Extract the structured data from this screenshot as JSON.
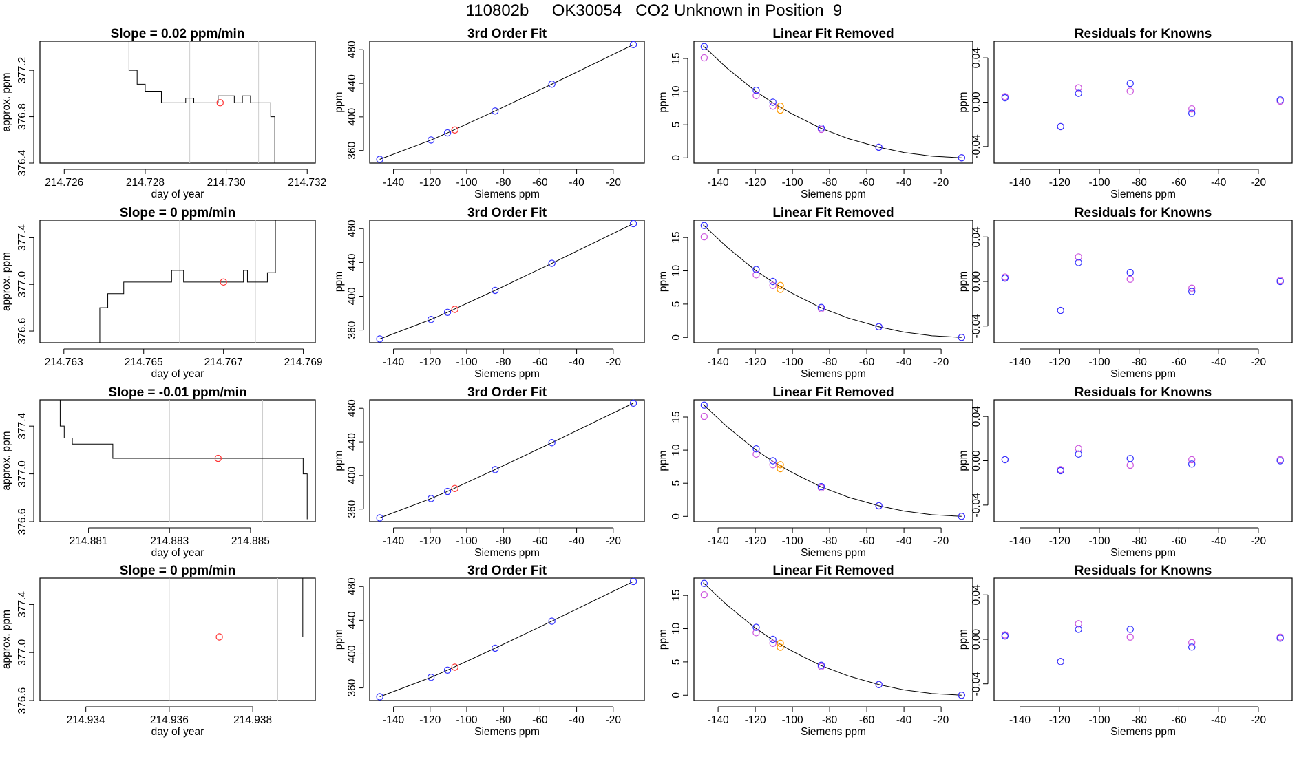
{
  "title": "110802b     OK30054   CO2 Unknown in Position  9",
  "colors": {
    "line": "#000000",
    "known_standard": "#3333ff",
    "alt_standard": "#cc55dd",
    "unknown": "#ff3333",
    "unknown_fit": "#ff9900",
    "gridline": "#cccccc"
  },
  "chart_data": [
    {
      "type": "line",
      "row": 0,
      "col": 0,
      "title": "Slope =  0.02  ppm/min",
      "xlabel": "day of year",
      "ylabel": "approx. ppm",
      "xlim": [
        214.7254,
        214.7322
      ],
      "ylim": [
        376.4,
        377.45
      ],
      "xticks": [
        214.726,
        214.728,
        214.73,
        214.732
      ],
      "xticklabels": [
        "214.726",
        "214.728",
        "214.730",
        "214.732"
      ],
      "yticks": [
        376.4,
        376.8,
        377.2
      ],
      "yticklabels": [
        "376.4",
        "376.8",
        "377.2"
      ],
      "vlines": [
        214.7291,
        214.7308
      ],
      "series": {
        "x": [
          214.7274,
          214.7276,
          214.7278,
          214.728,
          214.7282,
          214.7284,
          214.7286,
          214.7288,
          214.729,
          214.7292,
          214.7294,
          214.7296,
          214.7298,
          214.73,
          214.7302,
          214.7304,
          214.7306,
          214.7308,
          214.731,
          214.7311,
          214.7312
        ],
        "y": [
          377.45,
          377.2,
          377.08,
          377.02,
          377.02,
          376.92,
          376.92,
          376.92,
          376.96,
          376.92,
          376.92,
          376.92,
          376.98,
          376.98,
          376.92,
          376.98,
          376.92,
          376.92,
          376.92,
          376.8,
          376.4
        ]
      },
      "marker": {
        "x": 214.72985,
        "y": 376.92
      }
    },
    {
      "type": "line",
      "row": 1,
      "col": 0,
      "title": "Slope =  0  ppm/min",
      "xlabel": "day of year",
      "ylabel": "approx. ppm",
      "xlim": [
        214.7624,
        214.7693
      ],
      "ylim": [
        376.5,
        377.55
      ],
      "xticks": [
        214.763,
        214.765,
        214.767,
        214.769
      ],
      "xticklabels": [
        "214.763",
        "214.765",
        "214.767",
        "214.769"
      ],
      "yticks": [
        376.6,
        377.0,
        377.4
      ],
      "yticklabels": [
        "376.6",
        "377.0",
        "377.4"
      ],
      "vlines": [
        214.7659,
        214.7678
      ],
      "series": {
        "x": [
          214.7637,
          214.7639,
          214.7641,
          214.7643,
          214.7645,
          214.7652,
          214.7657,
          214.7659,
          214.766,
          214.7663,
          214.7666,
          214.7671,
          214.7675,
          214.7676,
          214.7678,
          214.7681,
          214.7683
        ],
        "y": [
          376.5,
          376.8,
          376.92,
          376.92,
          377.02,
          377.02,
          377.12,
          377.12,
          377.02,
          377.02,
          377.02,
          377.02,
          377.12,
          377.02,
          377.02,
          377.1,
          377.55
        ]
      },
      "marker": {
        "x": 214.767,
        "y": 377.02
      }
    },
    {
      "type": "line",
      "row": 2,
      "col": 0,
      "title": "Slope =  -0.01  ppm/min",
      "xlabel": "day of year",
      "ylabel": "approx. ppm",
      "xlim": [
        214.8798,
        214.8866
      ],
      "ylim": [
        376.6,
        377.62
      ],
      "xticks": [
        214.881,
        214.883,
        214.885
      ],
      "xticklabels": [
        "214.881",
        "214.883",
        "214.885"
      ],
      "yticks": [
        376.6,
        377.0,
        377.4
      ],
      "yticklabels": [
        "376.6",
        "377.0",
        "377.4"
      ],
      "vlines": [
        214.883,
        214.8853
      ],
      "series": {
        "x": [
          214.8801,
          214.8803,
          214.8804,
          214.8806,
          214.8808,
          214.8811,
          214.8816,
          214.8822,
          214.8828,
          214.8834,
          214.8839,
          214.8845,
          214.8851,
          214.8857,
          214.8861,
          214.8863,
          214.8864
        ],
        "y": [
          377.62,
          377.4,
          377.3,
          377.25,
          377.25,
          377.25,
          377.13,
          377.13,
          377.13,
          377.13,
          377.13,
          377.13,
          377.13,
          377.13,
          377.13,
          377.0,
          376.62
        ]
      },
      "marker": {
        "x": 214.8842,
        "y": 377.13
      }
    },
    {
      "type": "line",
      "row": 3,
      "col": 0,
      "title": "Slope =  0  ppm/min",
      "xlabel": "day of year",
      "ylabel": "approx. ppm",
      "xlim": [
        214.9329,
        214.9395
      ],
      "ylim": [
        376.6,
        377.62
      ],
      "xticks": [
        214.934,
        214.936,
        214.938
      ],
      "xticklabels": [
        "214.934",
        "214.936",
        "214.938"
      ],
      "yticks": [
        376.6,
        377.0,
        377.4
      ],
      "yticklabels": [
        "376.6",
        "377.0",
        "377.4"
      ],
      "vlines": [
        214.936,
        214.9386
      ],
      "series": {
        "x": [
          214.9332,
          214.934,
          214.9347,
          214.9353,
          214.9356,
          214.9359,
          214.9361,
          214.9366,
          214.9371,
          214.9375,
          214.9377,
          214.938,
          214.9383,
          214.9386,
          214.9389,
          214.9391,
          214.9392
        ],
        "y": [
          377.13,
          377.13,
          377.13,
          377.13,
          377.13,
          377.13,
          377.13,
          377.13,
          377.13,
          377.13,
          377.13,
          377.13,
          377.13,
          377.13,
          377.13,
          377.13,
          377.62
        ]
      },
      "marker": {
        "x": 214.9372,
        "y": 377.13
      }
    },
    {
      "type": "scatter",
      "col": 1,
      "rows": [
        0,
        1,
        2,
        3
      ],
      "title": "3rd Order Fit",
      "xlabel": "Siemens ppm",
      "ylabel": "ppm",
      "xlim": [
        -153,
        -3
      ],
      "ylim": [
        345,
        490
      ],
      "xticks": [
        -140,
        -120,
        -100,
        -80,
        -60,
        -40,
        -20
      ],
      "xticklabels": [
        "-140",
        "-120",
        "-100",
        "-80",
        "-60",
        "-40",
        "-20"
      ],
      "yticks": [
        360,
        400,
        440,
        480
      ],
      "yticklabels": [
        "360",
        "400",
        "440",
        "480"
      ],
      "knowns": {
        "x": [
          -147.5,
          -119.5,
          -110.5,
          -84.5,
          -53.5,
          -9
        ],
        "y": [
          349.5,
          372.5,
          381,
          407,
          439,
          486
        ]
      },
      "unknown": {
        "x": -106.5,
        "y": 384.5
      }
    },
    {
      "type": "scatter",
      "col": 2,
      "rows": [
        0,
        1,
        2,
        3
      ],
      "title": "Linear Fit Removed",
      "xlabel": "Siemens ppm",
      "ylabel": "ppm",
      "xlim": [
        -153,
        -3
      ],
      "ylim": [
        -0.8,
        17.6
      ],
      "xticks": [
        -140,
        -120,
        -100,
        -80,
        -60,
        -40,
        -20
      ],
      "xticklabels": [
        "-140",
        "-120",
        "-100",
        "-80",
        "-60",
        "-40",
        "-20"
      ],
      "yticks": [
        0,
        5,
        10,
        15
      ],
      "yticklabels": [
        "0",
        "5",
        "10",
        "15"
      ],
      "fit_curve": {
        "x": [
          -148,
          -135,
          -120,
          -110,
          -100,
          -85,
          -70,
          -53.5,
          -40,
          -25,
          -9
        ],
        "y": [
          16.9,
          13.5,
          10.1,
          8.2,
          6.6,
          4.5,
          2.9,
          1.6,
          0.8,
          0.25,
          0.0
        ]
      },
      "knowns": {
        "x": [
          -147.5,
          -119.5,
          -110.5,
          -84.5,
          -53.5,
          -9
        ],
        "y": [
          16.8,
          10.2,
          8.4,
          4.5,
          1.6,
          0.0
        ]
      },
      "knowns_alt": {
        "x": [
          -147.5,
          -119.5,
          -110.5,
          -84.5,
          -53.5,
          -9
        ],
        "y": [
          15.1,
          9.4,
          7.8,
          4.3,
          1.6,
          0.0
        ]
      },
      "unknown": {
        "x": -106.5,
        "y": [
          7.8,
          7.2
        ]
      }
    },
    {
      "type": "scatter",
      "col": 3,
      "rows": [
        0,
        1,
        2,
        3
      ],
      "title": "Residuals for Knowns",
      "xlabel": "Siemens ppm",
      "ylabel": "ppm",
      "xlim": [
        -153,
        -3
      ],
      "ylim": [
        -0.055,
        0.055
      ],
      "xticks": [
        -140,
        -120,
        -100,
        -80,
        -60,
        -40,
        -20
      ],
      "xticklabels": [
        "-140",
        "-120",
        "-100",
        "-80",
        "-60",
        "-40",
        "-20"
      ],
      "yticks": [
        -0.04,
        0.0,
        0.04
      ],
      "yticklabels": [
        "-0.04",
        "0.00",
        "0.04"
      ],
      "residuals": [
        {
          "row": 0,
          "x": [
            -147.5,
            -119.5,
            -110.5,
            -84.5,
            -53.5,
            -9
          ],
          "blue": [
            0.004,
            -0.022,
            0.008,
            0.017,
            -0.01,
            0.002
          ],
          "violet": [
            0.005,
            -0.022,
            0.013,
            0.01,
            -0.006,
            0.001
          ]
        },
        {
          "row": 1,
          "x": [
            -147.5,
            -119.5,
            -110.5,
            -84.5,
            -53.5,
            -9
          ],
          "blue": [
            0.003,
            -0.026,
            0.017,
            0.008,
            -0.009,
            0.0
          ],
          "violet": [
            0.004,
            -0.026,
            0.022,
            0.002,
            -0.006,
            0.001
          ]
        },
        {
          "row": 2,
          "x": [
            -147.5,
            -119.5,
            -110.5,
            -84.5,
            -53.5,
            -9
          ],
          "blue": [
            0.001,
            -0.009,
            0.006,
            0.002,
            -0.003,
            0.0
          ],
          "violet": [
            0.001,
            -0.008,
            0.011,
            -0.004,
            0.001,
            0.001
          ]
        },
        {
          "row": 3,
          "x": [
            -147.5,
            -119.5,
            -110.5,
            -84.5,
            -53.5,
            -9
          ],
          "blue": [
            0.003,
            -0.02,
            0.009,
            0.009,
            -0.007,
            0.001
          ],
          "violet": [
            0.004,
            -0.02,
            0.014,
            0.002,
            -0.003,
            0.002
          ]
        }
      ]
    }
  ]
}
